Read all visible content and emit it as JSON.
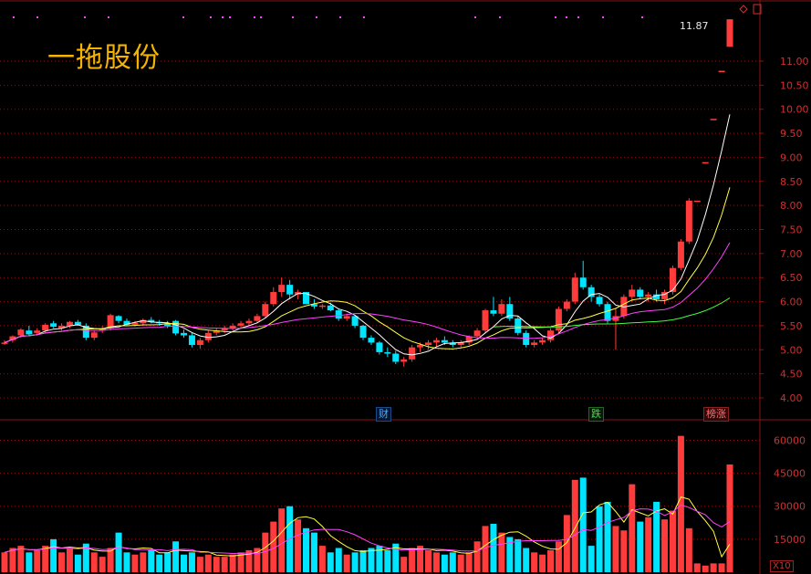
{
  "stock": {
    "name": "一拖股份",
    "last_price": "11.87",
    "vol_multiplier": "X10"
  },
  "badges": {
    "cai": "财",
    "die": "跌",
    "bang": "榜涨"
  },
  "colors": {
    "up": "#ff3b3b",
    "down": "#00e5ff",
    "ma5": "#ffffff",
    "ma10": "#ffff40",
    "ma20": "#ff40ff",
    "ma60": "#40ff40",
    "grid": "#8a1212",
    "axis_text": "#d03030",
    "name": "#f5b400"
  },
  "price_axis": {
    "labels": [
      "11.00",
      "10.50",
      "10.00",
      "9.50",
      "9.00",
      "8.50",
      "8.00",
      "7.50",
      "7.00",
      "6.50",
      "6.00",
      "5.50",
      "5.00",
      "4.50",
      "4.00"
    ]
  },
  "volume_axis": {
    "labels": [
      "60000",
      "45000",
      "30000",
      "15000"
    ]
  },
  "chart_data": {
    "type": "candlestick",
    "price_range": [
      3.85,
      11.9
    ],
    "volume_range": [
      0,
      66000
    ],
    "bars": [
      [
        5.15,
        5.2,
        5.1,
        5.15,
        9000
      ],
      [
        5.2,
        5.3,
        5.15,
        5.28,
        11000
      ],
      [
        5.3,
        5.45,
        5.25,
        5.42,
        12000
      ],
      [
        5.4,
        5.5,
        5.3,
        5.32,
        9000
      ],
      [
        5.35,
        5.45,
        5.3,
        5.4,
        10000
      ],
      [
        5.4,
        5.55,
        5.35,
        5.52,
        12000
      ],
      [
        5.55,
        5.6,
        5.45,
        5.48,
        15000
      ],
      [
        5.45,
        5.55,
        5.4,
        5.5,
        9000
      ],
      [
        5.5,
        5.6,
        5.45,
        5.58,
        11000
      ],
      [
        5.58,
        5.62,
        5.5,
        5.52,
        8000
      ],
      [
        5.5,
        5.55,
        5.2,
        5.25,
        13000
      ],
      [
        5.25,
        5.4,
        5.2,
        5.36,
        9000
      ],
      [
        5.4,
        5.5,
        5.35,
        5.45,
        7000
      ],
      [
        5.45,
        5.75,
        5.4,
        5.72,
        11000
      ],
      [
        5.7,
        5.72,
        5.55,
        5.6,
        18000
      ],
      [
        5.6,
        5.65,
        5.5,
        5.52,
        9000
      ],
      [
        5.52,
        5.6,
        5.48,
        5.56,
        8000
      ],
      [
        5.55,
        5.65,
        5.5,
        5.62,
        9000
      ],
      [
        5.62,
        5.68,
        5.55,
        5.58,
        10000
      ],
      [
        5.58,
        5.62,
        5.5,
        5.55,
        8000
      ],
      [
        5.55,
        5.6,
        5.45,
        5.5,
        9000
      ],
      [
        5.6,
        5.62,
        5.3,
        5.34,
        14000
      ],
      [
        5.35,
        5.42,
        5.25,
        5.3,
        8000
      ],
      [
        5.3,
        5.35,
        5.05,
        5.1,
        9000
      ],
      [
        5.1,
        5.25,
        5.02,
        5.2,
        7000
      ],
      [
        5.2,
        5.4,
        5.15,
        5.35,
        8000
      ],
      [
        5.35,
        5.45,
        5.3,
        5.4,
        7000
      ],
      [
        5.4,
        5.5,
        5.35,
        5.45,
        7000
      ],
      [
        5.45,
        5.55,
        5.4,
        5.5,
        8000
      ],
      [
        5.5,
        5.6,
        5.45,
        5.55,
        9000
      ],
      [
        5.55,
        5.65,
        5.5,
        5.6,
        10000
      ],
      [
        5.6,
        5.75,
        5.55,
        5.7,
        11000
      ],
      [
        5.7,
        6.0,
        5.65,
        5.95,
        18000
      ],
      [
        5.95,
        6.3,
        5.9,
        6.2,
        23000
      ],
      [
        6.2,
        6.5,
        6.1,
        6.35,
        29000
      ],
      [
        6.35,
        6.45,
        6.05,
        6.15,
        30000
      ],
      [
        6.15,
        6.25,
        6.05,
        6.2,
        24000
      ],
      [
        6.2,
        6.12,
        5.95,
        5.95,
        20000
      ],
      [
        5.95,
        6.05,
        5.85,
        5.9,
        18000
      ],
      [
        5.9,
        5.95,
        5.85,
        5.92,
        12000
      ],
      [
        5.92,
        5.98,
        5.8,
        5.82,
        9000
      ],
      [
        5.82,
        5.85,
        5.6,
        5.65,
        11000
      ],
      [
        5.65,
        5.75,
        5.6,
        5.7,
        8000
      ],
      [
        5.7,
        5.72,
        5.45,
        5.5,
        9000
      ],
      [
        5.5,
        5.52,
        5.2,
        5.25,
        10000
      ],
      [
        5.25,
        5.3,
        5.1,
        5.15,
        11000
      ],
      [
        5.15,
        5.18,
        4.9,
        4.95,
        12000
      ],
      [
        4.95,
        5.05,
        4.85,
        4.92,
        10000
      ],
      [
        4.92,
        4.98,
        4.7,
        4.75,
        13000
      ],
      [
        4.75,
        4.85,
        4.65,
        4.8,
        7000
      ],
      [
        4.8,
        5.1,
        4.75,
        5.05,
        11000
      ],
      [
        5.05,
        5.15,
        4.95,
        5.1,
        12000
      ],
      [
        5.1,
        5.2,
        5.0,
        5.15,
        10000
      ],
      [
        5.15,
        5.25,
        5.05,
        5.2,
        9000
      ],
      [
        5.2,
        5.28,
        5.1,
        5.15,
        8000
      ],
      [
        5.15,
        5.2,
        5.05,
        5.1,
        9000
      ],
      [
        5.1,
        5.2,
        5.05,
        5.15,
        8000
      ],
      [
        5.15,
        5.3,
        5.1,
        5.28,
        9000
      ],
      [
        5.28,
        5.45,
        5.25,
        5.4,
        14000
      ],
      [
        5.4,
        5.85,
        5.35,
        5.82,
        21000
      ],
      [
        5.82,
        6.1,
        5.7,
        5.75,
        22000
      ],
      [
        5.75,
        6.05,
        5.7,
        5.95,
        18000
      ],
      [
        5.95,
        6.1,
        5.6,
        5.65,
        16000
      ],
      [
        5.65,
        5.7,
        5.3,
        5.35,
        15000
      ],
      [
        5.35,
        5.4,
        5.05,
        5.1,
        11000
      ],
      [
        5.1,
        5.2,
        5.05,
        5.15,
        9000
      ],
      [
        5.15,
        5.25,
        5.1,
        5.2,
        8000
      ],
      [
        5.2,
        5.45,
        5.15,
        5.4,
        10000
      ],
      [
        5.4,
        5.9,
        5.35,
        5.85,
        14000
      ],
      [
        5.85,
        6.05,
        5.8,
        6.0,
        26000
      ],
      [
        6.0,
        6.6,
        5.95,
        6.5,
        42000
      ],
      [
        6.5,
        6.85,
        6.25,
        6.3,
        43000
      ],
      [
        6.3,
        6.35,
        6.0,
        6.1,
        12000
      ],
      [
        6.1,
        6.15,
        5.9,
        5.95,
        30000
      ],
      [
        5.95,
        6.0,
        5.55,
        5.6,
        32000
      ],
      [
        5.6,
        5.85,
        5.0,
        5.7,
        21000
      ],
      [
        5.7,
        6.15,
        5.65,
        6.1,
        19000
      ],
      [
        6.1,
        6.35,
        6.0,
        6.25,
        40000
      ],
      [
        6.25,
        6.3,
        6.05,
        6.1,
        23000
      ],
      [
        6.1,
        6.2,
        6.0,
        6.15,
        25000
      ],
      [
        6.15,
        6.25,
        6.0,
        6.05,
        32000
      ],
      [
        6.05,
        6.25,
        5.95,
        6.2,
        24000
      ],
      [
        6.2,
        6.75,
        6.15,
        6.7,
        28000
      ],
      [
        6.7,
        7.3,
        6.65,
        7.25,
        62000
      ],
      [
        7.25,
        8.15,
        7.2,
        8.1,
        20000
      ],
      [
        8.1,
        8.1,
        8.1,
        8.1,
        4000
      ],
      [
        8.9,
        8.9,
        8.9,
        8.9,
        3000
      ],
      [
        9.8,
        9.8,
        9.8,
        9.8,
        4000
      ],
      [
        10.8,
        10.8,
        10.8,
        10.8,
        4000
      ],
      [
        11.3,
        11.87,
        11.3,
        11.87,
        49000
      ]
    ]
  }
}
